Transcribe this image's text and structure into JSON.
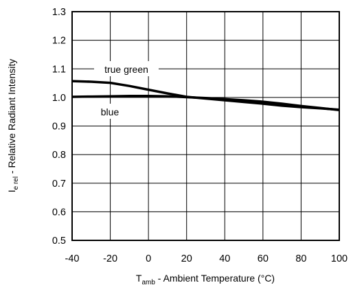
{
  "chart_data": {
    "type": "line",
    "xlabel": {
      "symbol": "T",
      "subscript": "amb",
      "text": " - Ambient Temperature (°C)"
    },
    "ylabel": {
      "symbol": "I",
      "subscript": "e rel",
      "text": " - Relative Radiant Intensity"
    },
    "xlim": [
      -40,
      100
    ],
    "ylim": [
      0.5,
      1.3
    ],
    "xticks": [
      -40,
      -20,
      0,
      20,
      40,
      60,
      80,
      100
    ],
    "yticks": [
      0.5,
      0.6,
      0.7,
      0.8,
      0.9,
      1.0,
      1.1,
      1.2,
      1.3
    ],
    "grid": true,
    "series": [
      {
        "name": "true green",
        "x": [
          -40,
          -30,
          -20,
          -10,
          0,
          10,
          20,
          30,
          40,
          50,
          60,
          70,
          80,
          90,
          100
        ],
        "y": [
          1.057,
          1.055,
          1.051,
          1.04,
          1.027,
          1.014,
          1.002,
          0.996,
          0.99,
          0.984,
          0.978,
          0.971,
          0.966,
          0.962,
          0.957
        ]
      },
      {
        "name": "blue",
        "x": [
          -40,
          -30,
          -20,
          -10,
          0,
          10,
          20,
          30,
          40,
          50,
          60,
          70,
          80,
          90,
          100
        ],
        "y": [
          1.002,
          1.003,
          1.004,
          1.005,
          1.005,
          1.004,
          1.001,
          0.998,
          0.994,
          0.99,
          0.985,
          0.978,
          0.97,
          0.963,
          0.956
        ]
      }
    ]
  }
}
